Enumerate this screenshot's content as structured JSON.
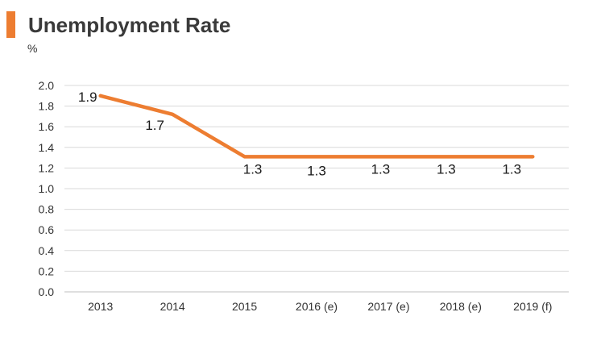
{
  "accent_color": "#ED7D31",
  "chart_data": {
    "type": "line",
    "title": "Unemployment Rate",
    "ylabel": "%",
    "xlabel": "",
    "categories": [
      "2013",
      "2014",
      "2015",
      "2016 (e)",
      "2017 (e)",
      "2018 (e)",
      "2019 (f)"
    ],
    "series": [
      {
        "name": "Unemployment Rate",
        "values": [
          1.9,
          1.72,
          1.31,
          1.31,
          1.31,
          1.31,
          1.31
        ],
        "data_labels": [
          "1.9",
          "1.7",
          "1.3",
          "1.3",
          "1.3",
          "1.3",
          "1.3"
        ],
        "color": "#ED7D31"
      }
    ],
    "ylim": [
      0,
      2.0
    ],
    "yticks": [
      "0.0",
      "0.2",
      "0.4",
      "0.6",
      "0.8",
      "1.0",
      "1.2",
      "1.4",
      "1.6",
      "1.8",
      "2.0"
    ],
    "grid": true,
    "legend": "none"
  }
}
